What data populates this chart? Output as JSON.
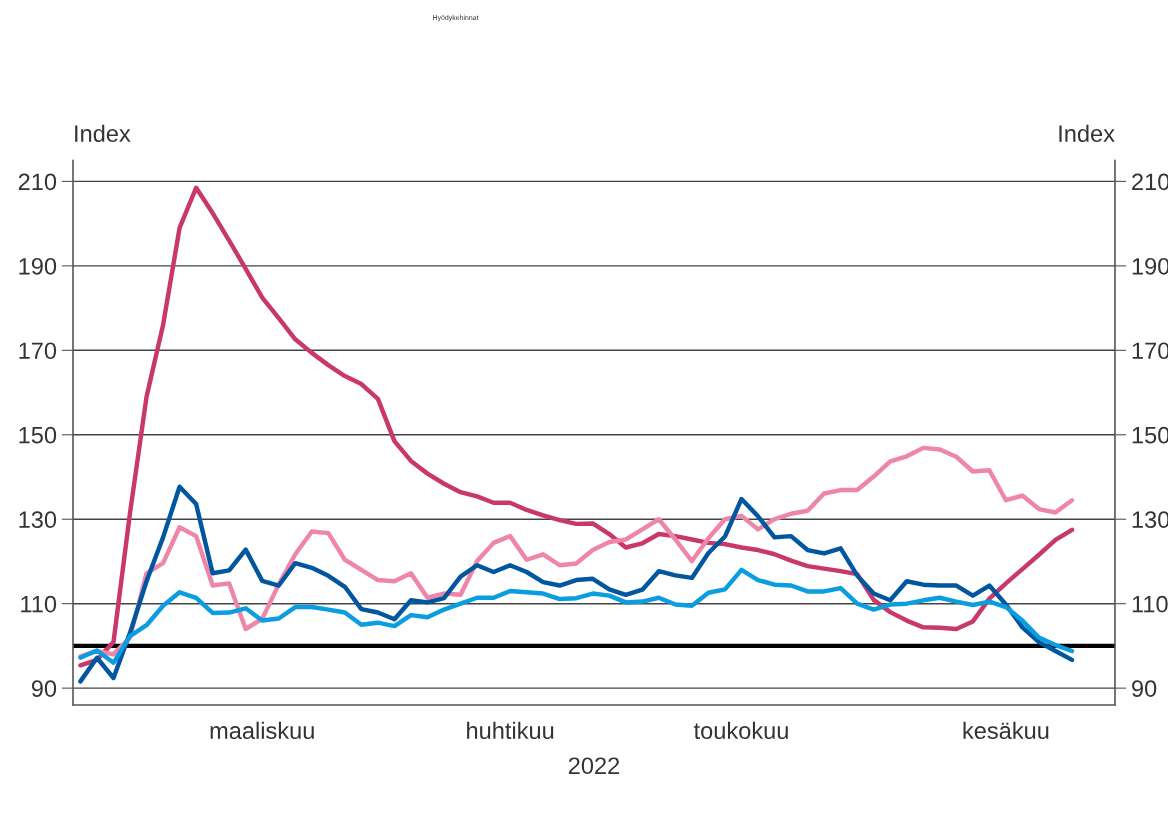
{
  "chart_data": {
    "type": "line",
    "title": "Hyödykehinnat",
    "xlabel": "2022",
    "ylabel": "Index",
    "y2label": "Index",
    "categories": [
      null,
      null,
      null,
      null,
      null,
      null,
      null,
      null,
      null,
      null,
      null,
      "maaliskuu",
      null,
      null,
      null,
      null,
      null,
      null,
      null,
      null,
      null,
      null,
      null,
      null,
      null,
      null,
      "huhtikuu",
      null,
      null,
      null,
      null,
      null,
      null,
      null,
      null,
      null,
      null,
      null,
      null,
      null,
      "toukokuu",
      null,
      null,
      null,
      null,
      null,
      null,
      null,
      null,
      null,
      null,
      null,
      null,
      null,
      null,
      null,
      "kesäkuu",
      null,
      null,
      null,
      null
    ],
    "series": [
      {
        "color": "#c8386b",
        "values": [
          95.4,
          96.7,
          100.9,
          131.5,
          159,
          176,
          199,
          208.5,
          202.5,
          196,
          189.3,
          182.5,
          177.6,
          172.6,
          169.4,
          166.5,
          163.9,
          162,
          158.5,
          148.5,
          143.8,
          140.8,
          138.4,
          136.4,
          135.4,
          133.9,
          133.9,
          132.2,
          130.9,
          129.8,
          128.9,
          129,
          126.5,
          123.3,
          124.3,
          126.5,
          126,
          125.2,
          124.4,
          124.1,
          123.3,
          122.7,
          121.7,
          120.2,
          118.9,
          118.3,
          117.7,
          117,
          110.9,
          108,
          106,
          104.4,
          104.3,
          104,
          105.8,
          111.2,
          114.8,
          118.2,
          121.6,
          125.1,
          127.5
        ]
      },
      {
        "color": "#ef85a8",
        "values": [
          97.5,
          98.8,
          98,
          102,
          117.2,
          119.6,
          128.1,
          126,
          114.3,
          114.8,
          104,
          106.4,
          114.6,
          121.7,
          127.1,
          126.7,
          120.4,
          118,
          115.6,
          115.3,
          117.2,
          111.4,
          112.4,
          112.1,
          120.1,
          124.4,
          126,
          120.4,
          121.7,
          119.1,
          119.5,
          122.7,
          124.6,
          125.2,
          127.6,
          130,
          125.2,
          120.1,
          125.5,
          130,
          130.8,
          127.6,
          130,
          131.3,
          132,
          136.1,
          136.9,
          136.9,
          140.1,
          143.7,
          144.9,
          146.9,
          146.5,
          144.8,
          141.3,
          141.6,
          134.5,
          135.6,
          132.4,
          131.6,
          134.5
        ]
      },
      {
        "color": "#0057a0",
        "values": [
          91.6,
          97.2,
          92.4,
          103.1,
          115.3,
          125.7,
          137.7,
          133.6,
          117.2,
          117.9,
          122.8,
          115.4,
          114.3,
          119.6,
          118.5,
          116.6,
          114,
          108.7,
          107.9,
          106.3,
          110.8,
          110.3,
          111.3,
          116.4,
          119.1,
          117.5,
          119.1,
          117.5,
          115.1,
          114.3,
          115.6,
          115.9,
          113.4,
          112.1,
          113.3,
          117.7,
          116.7,
          116.1,
          122,
          125.9,
          134.8,
          130.7,
          125.7,
          126,
          122.7,
          121.9,
          123.1,
          116.7,
          112.4,
          110.8,
          115.3,
          114.5,
          114.3,
          114.3,
          111.9,
          114.3,
          109.8,
          104.4,
          100.9,
          98.8,
          96.7
        ]
      },
      {
        "color": "#0a9ee0",
        "values": [
          97.2,
          98.9,
          96,
          102.3,
          104.9,
          109.5,
          112.7,
          111.4,
          107.8,
          107.9,
          108.9,
          106,
          106.5,
          109.2,
          109.2,
          108.6,
          107.9,
          105,
          105.5,
          104.7,
          107.3,
          106.8,
          108.6,
          110,
          111.4,
          111.4,
          113,
          112.7,
          112.4,
          111.1,
          111.3,
          112.4,
          111.9,
          110.3,
          110.5,
          111.4,
          109.8,
          109.5,
          112.6,
          113.4,
          118,
          115.6,
          114.5,
          114.3,
          112.9,
          112.9,
          113.7,
          110,
          108.6,
          109.8,
          110,
          110.8,
          111.4,
          110.5,
          109.7,
          110.5,
          109.2,
          106,
          102,
          100.2,
          98.8
        ]
      }
    ],
    "ylim": [
      86,
      215
    ],
    "yticks": [
      90,
      110,
      130,
      150,
      170,
      190,
      210
    ],
    "y2lim": [
      86,
      215
    ],
    "y2ticks": [
      90,
      110,
      130,
      150,
      170,
      190,
      210
    ],
    "grid": "y",
    "ref_lines": [
      {
        "axis": "y",
        "value": 100,
        "color": "#000000"
      }
    ],
    "marker": "none",
    "line_style": "solid"
  }
}
